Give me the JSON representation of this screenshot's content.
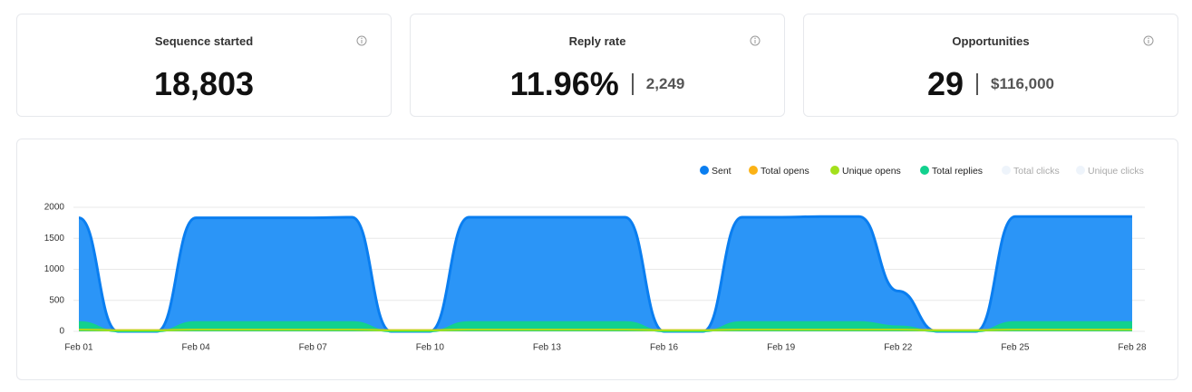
{
  "cards": [
    {
      "title": "Sequence started",
      "value": "18,803"
    },
    {
      "title": "Reply rate",
      "value": "11.96%",
      "secondary": "2,249"
    },
    {
      "title": "Opportunities",
      "value": "29",
      "secondary": "$116,000"
    }
  ],
  "chart_data": {
    "type": "area",
    "categories": [
      "Feb 01",
      null,
      null,
      "Feb 04",
      null,
      null,
      "Feb 07",
      null,
      null,
      "Feb 10",
      null,
      null,
      "Feb 13",
      null,
      null,
      "Feb 16",
      null,
      null,
      "Feb 19",
      null,
      null,
      "Feb 22",
      null,
      null,
      "Feb 25",
      null,
      null,
      "Feb 28"
    ],
    "series": [
      {
        "name": "Sent",
        "color": "#0a7ef0",
        "values": [
          1830,
          0,
          0,
          1830,
          1830,
          1830,
          1830,
          1840,
          0,
          0,
          1840,
          1840,
          1840,
          1840,
          1840,
          0,
          0,
          1840,
          1840,
          1850,
          1850,
          650,
          0,
          0,
          1850,
          1850,
          1850,
          1850
        ]
      },
      {
        "name": "Total opens",
        "color": "#fbb216",
        "values": [
          30,
          20,
          20,
          30,
          30,
          30,
          30,
          30,
          20,
          20,
          30,
          30,
          30,
          30,
          30,
          20,
          20,
          30,
          30,
          30,
          30,
          30,
          20,
          20,
          30,
          30,
          30,
          30
        ]
      },
      {
        "name": "Unique opens",
        "color": "#a3e01b",
        "values": [
          25,
          15,
          15,
          25,
          25,
          25,
          25,
          25,
          15,
          15,
          25,
          25,
          25,
          25,
          25,
          15,
          15,
          25,
          25,
          25,
          25,
          25,
          15,
          15,
          25,
          25,
          25,
          25
        ]
      },
      {
        "name": "Total replies",
        "color": "#12d18e",
        "values": [
          150,
          0,
          0,
          150,
          150,
          150,
          150,
          150,
          0,
          0,
          150,
          150,
          150,
          150,
          150,
          0,
          0,
          150,
          150,
          150,
          150,
          80,
          0,
          0,
          150,
          150,
          150,
          150
        ]
      },
      {
        "name": "Total clicks",
        "color": "#eef4fb",
        "hidden": true
      },
      {
        "name": "Unique clicks",
        "color": "#eef4fb",
        "hidden": true
      }
    ],
    "ylim": [
      0,
      2000
    ],
    "yticks": [
      0,
      500,
      1000,
      1500,
      2000
    ],
    "grid": true
  }
}
